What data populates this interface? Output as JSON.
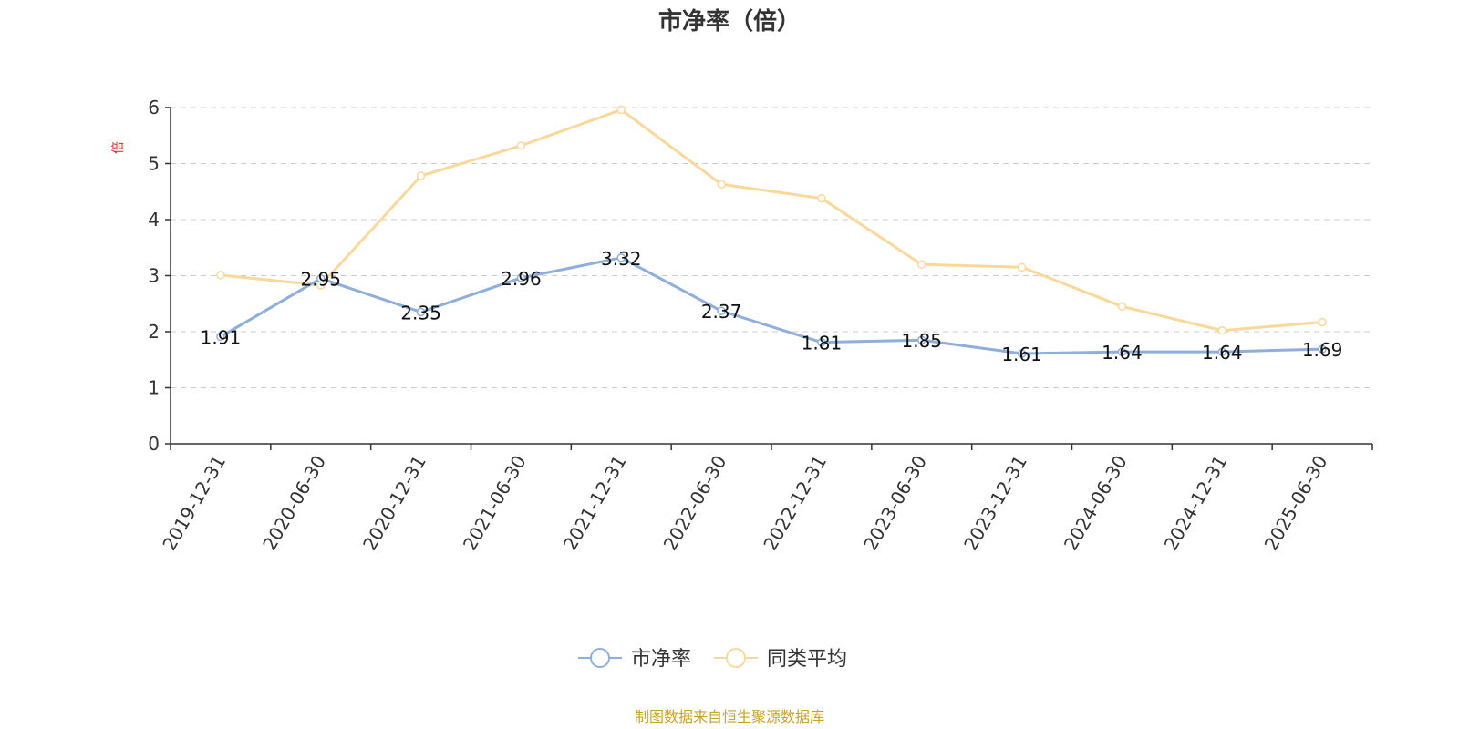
{
  "chart_data": {
    "type": "line",
    "title": "市净率（倍）",
    "ylabel": "倍",
    "xlabel": "",
    "categories": [
      "2019-12-31",
      "2020-06-30",
      "2020-12-31",
      "2021-06-30",
      "2021-12-31",
      "2022-06-30",
      "2022-12-31",
      "2023-06-30",
      "2023-12-31",
      "2024-06-30",
      "2024-12-31",
      "2025-06-30"
    ],
    "ylim": [
      0,
      6
    ],
    "yticks": [
      0,
      1,
      2,
      3,
      4,
      5,
      6
    ],
    "grid": true,
    "legend_position": "bottom",
    "series": [
      {
        "name": "市净率",
        "color": "#8eaedb",
        "show_labels": true,
        "values": [
          1.91,
          2.95,
          2.35,
          2.96,
          3.32,
          2.37,
          1.81,
          1.85,
          1.61,
          1.64,
          1.64,
          1.69
        ]
      },
      {
        "name": "同类平均",
        "color": "#f9d89a",
        "show_labels": false,
        "values": [
          3.01,
          2.83,
          4.78,
          5.32,
          5.96,
          4.63,
          4.38,
          3.2,
          3.15,
          2.45,
          2.02,
          2.17
        ]
      }
    ]
  },
  "source_text": "制图数据来自恒生聚源数据库",
  "colors": {
    "ylabel": "#e0201e",
    "source": "#c9a227",
    "axis": "#333333",
    "grid": "#cccccc"
  }
}
